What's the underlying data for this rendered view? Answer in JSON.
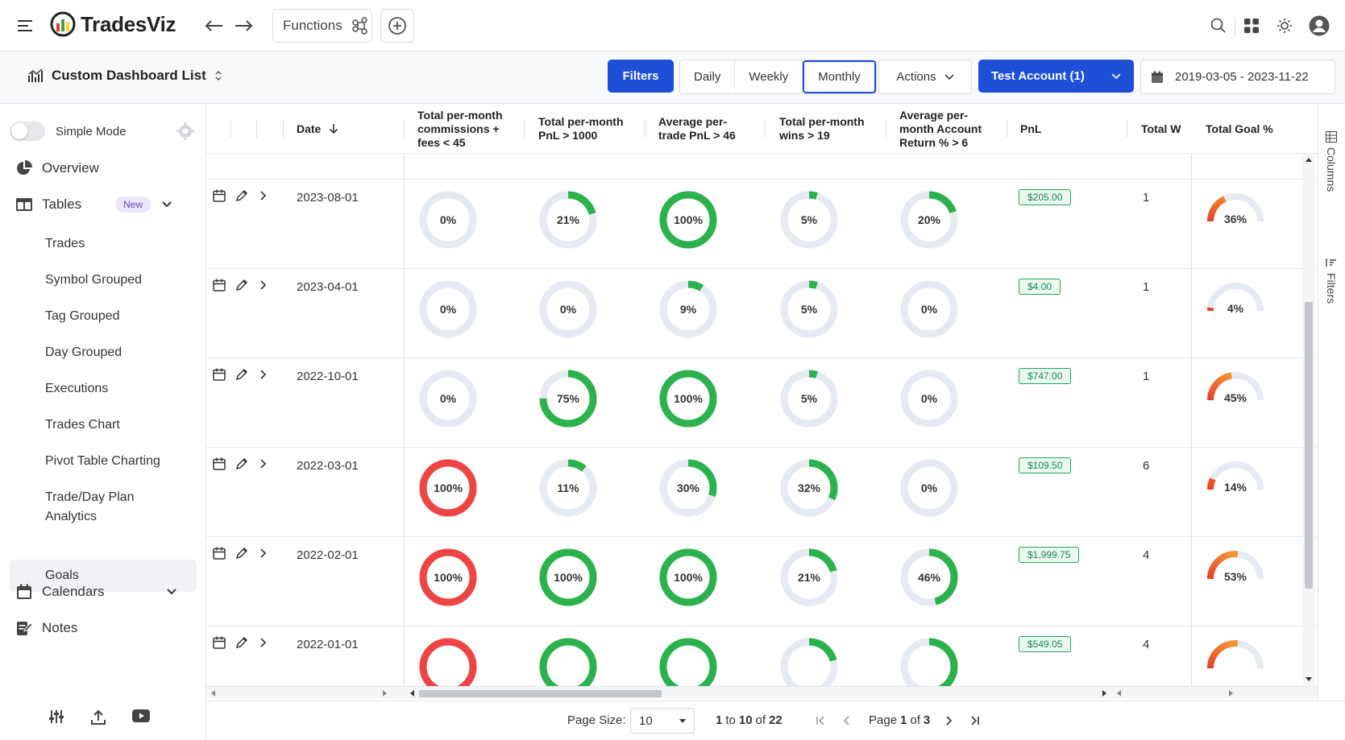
{
  "app": {
    "brand": "TradesViz"
  },
  "topbar": {
    "functions_label": "Functions"
  },
  "toolbar": {
    "dashboard_title": "Custom Dashboard List",
    "filters_label": "Filters",
    "periods": [
      "Daily",
      "Weekly",
      "Monthly"
    ],
    "active_period": "Monthly",
    "actions_label": "Actions",
    "account_label": "Test Account (1)",
    "date_range": "2019-03-05 - 2023-11-22"
  },
  "sidebar": {
    "simple_mode_label": "Simple Mode",
    "overview_label": "Overview",
    "tables_label": "Tables",
    "tables_badge": "New",
    "table_items": [
      "Trades",
      "Symbol Grouped",
      "Tag Grouped",
      "Day Grouped",
      "Executions",
      "Trades Chart",
      "Pivot Table Charting",
      "Trade/Day Plan",
      "Analytics",
      "Goals"
    ],
    "calendars_label": "Calendars",
    "notes_label": "Notes"
  },
  "grid": {
    "columns": {
      "date": "Date",
      "g1": [
        "Total per-month",
        "commissions +",
        "fees < 45"
      ],
      "g2": [
        "Total per-month",
        "PnL > 1000"
      ],
      "g3": [
        "Average per-",
        "trade PnL > 46"
      ],
      "g4": [
        "Total per-month",
        "wins > 19"
      ],
      "g5": [
        "Average per-",
        "month Account",
        "Return % > 6"
      ],
      "pnl": "PnL",
      "total_w": "Total W",
      "total_goal": "Total Goal %"
    },
    "rows": [
      {
        "date": "2023-08-01",
        "goals": [
          0,
          21,
          100,
          5,
          20
        ],
        "goal_labels": [
          "0%",
          "21%",
          "100%",
          "5%",
          "20%"
        ],
        "pnl": "$205.00",
        "total_w": "1",
        "total_goal": 36,
        "total_goal_label": "36%"
      },
      {
        "date": "2023-04-01",
        "goals": [
          0,
          0,
          9,
          5,
          0
        ],
        "goal_labels": [
          "0%",
          "0%",
          "9%",
          "5%",
          "0%"
        ],
        "pnl": "$4.00",
        "total_w": "1",
        "total_goal": 4,
        "total_goal_label": "4%"
      },
      {
        "date": "2022-10-01",
        "goals": [
          0,
          75,
          100,
          5,
          0
        ],
        "goal_labels": [
          "0%",
          "75%",
          "100%",
          "5%",
          "0%"
        ],
        "pnl": "$747.00",
        "total_w": "1",
        "total_goal": 45,
        "total_goal_label": "45%"
      },
      {
        "date": "2022-03-01",
        "goals": [
          100,
          11,
          30,
          32,
          0
        ],
        "goal_labels": [
          "100%",
          "11%",
          "30%",
          "32%",
          "0%"
        ],
        "pnl": "$109.50",
        "total_w": "6",
        "total_goal": 14,
        "total_goal_label": "14%"
      },
      {
        "date": "2022-02-01",
        "goals": [
          100,
          100,
          100,
          21,
          46
        ],
        "goal_labels": [
          "100%",
          "100%",
          "100%",
          "21%",
          "46%"
        ],
        "pnl": "$1,999.75",
        "total_w": "4",
        "total_goal": 53,
        "total_goal_label": "53%"
      },
      {
        "date": "2022-01-01",
        "goals": [
          100,
          100,
          100,
          21,
          46
        ],
        "goal_labels": [
          "",
          "",
          "",
          "",
          ""
        ],
        "pnl": "$549.05",
        "total_w": "4",
        "total_goal": 53,
        "total_goal_label": ""
      }
    ]
  },
  "side_tabs": {
    "columns": "Columns",
    "filters": "Filters"
  },
  "footer": {
    "page_size_label": "Page Size:",
    "page_size_value": "10",
    "range_from": "1",
    "range_to_word": "to",
    "range_to": "10",
    "range_of_word": "of",
    "range_total": "22",
    "page_word": "Page",
    "page_current": "1",
    "page_of_word": "of",
    "page_total": "3"
  },
  "colors": {
    "accent": "#1d4fd7",
    "goal_green": "#2bb24c",
    "goal_red": "#ef4444",
    "track": "#e6eaf3",
    "gauge_orange": "#f08a24"
  }
}
